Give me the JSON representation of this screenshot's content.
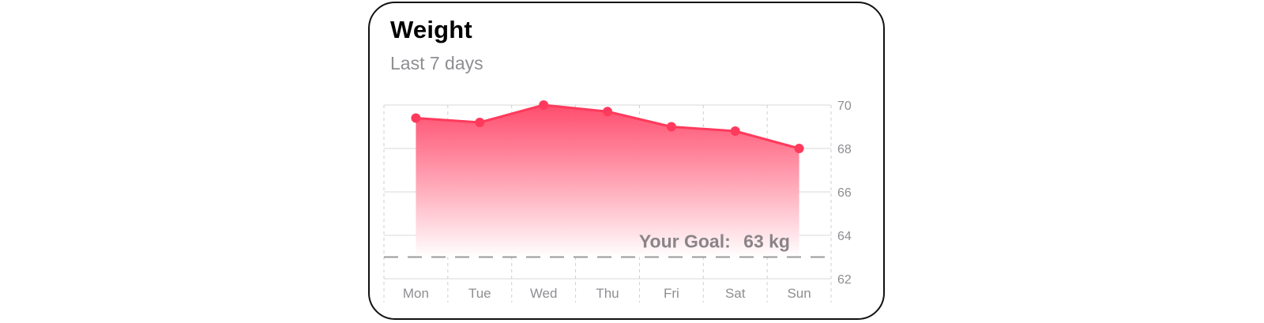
{
  "card": {
    "title": "Weight",
    "subtitle": "Last 7 days"
  },
  "goal": {
    "prefix": "Your Goal:",
    "value": 63,
    "unit": "kg",
    "display": "63 kg"
  },
  "colors": {
    "accent": "#ff3a5c",
    "fill_top": "#ff4466",
    "fill_bottom": "#ffffff",
    "grid": "#d9d9d9",
    "label": "#8e8e93"
  },
  "chart_data": {
    "type": "area",
    "categories": [
      "Mon",
      "Tue",
      "Wed",
      "Thu",
      "Fri",
      "Sat",
      "Sun"
    ],
    "values": [
      69.4,
      69.2,
      70.0,
      69.7,
      69.0,
      68.8,
      68.0
    ],
    "ylim": [
      62,
      70
    ],
    "yticks": [
      62,
      64,
      66,
      68,
      70
    ],
    "y_axis_position": "right",
    "grid": true,
    "goal_line": 63
  }
}
